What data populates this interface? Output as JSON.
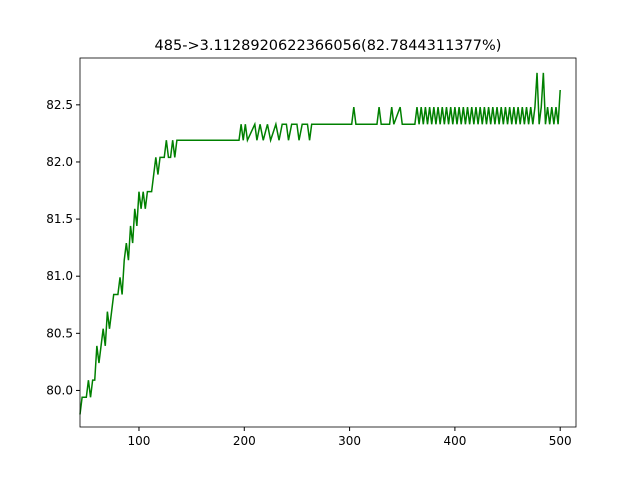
{
  "chart_data": {
    "type": "line",
    "title": "485->3.1128920622366056(82.7844311377%)",
    "x": [
      44,
      46,
      50,
      52,
      54,
      56,
      58,
      60,
      62,
      64,
      66,
      68,
      70,
      72,
      74,
      76,
      80,
      82,
      84,
      86,
      88,
      90,
      92,
      94,
      96,
      98,
      100,
      102,
      104,
      106,
      108,
      112,
      114,
      116,
      118,
      120,
      124,
      126,
      128,
      130,
      132,
      134,
      136,
      140,
      195,
      197,
      199,
      201,
      203,
      210,
      212,
      215,
      218,
      222,
      225,
      230,
      233,
      236,
      240,
      242,
      245,
      250,
      252,
      255,
      260,
      262,
      264,
      302,
      304,
      306,
      326,
      328,
      330,
      338,
      340,
      342,
      348,
      350,
      362,
      364,
      366,
      368,
      370,
      372,
      374,
      376,
      378,
      380,
      382,
      384,
      386,
      388,
      390,
      392,
      394,
      396,
      398,
      400,
      402,
      404,
      406,
      408,
      410,
      412,
      414,
      416,
      418,
      420,
      422,
      424,
      426,
      428,
      430,
      432,
      434,
      436,
      438,
      440,
      442,
      444,
      446,
      448,
      450,
      452,
      454,
      456,
      458,
      460,
      462,
      464,
      466,
      468,
      470,
      472,
      474,
      476,
      478,
      480,
      482,
      484,
      486,
      488,
      490,
      492,
      494,
      496,
      498,
      500
    ],
    "series": [
      {
        "color": "#008000",
        "values": [
          79.79,
          79.94,
          79.94,
          80.09,
          79.94,
          80.09,
          80.09,
          80.39,
          80.24,
          80.39,
          80.54,
          80.39,
          80.69,
          80.54,
          80.69,
          80.84,
          80.84,
          80.99,
          80.84,
          81.14,
          81.29,
          81.14,
          81.44,
          81.29,
          81.59,
          81.44,
          81.74,
          81.59,
          81.74,
          81.59,
          81.74,
          81.74,
          81.89,
          82.04,
          81.89,
          82.04,
          82.04,
          82.19,
          82.04,
          82.04,
          82.19,
          82.04,
          82.19,
          82.19,
          82.19,
          82.33,
          82.19,
          82.33,
          82.19,
          82.33,
          82.19,
          82.33,
          82.19,
          82.33,
          82.19,
          82.33,
          82.19,
          82.33,
          82.33,
          82.19,
          82.33,
          82.33,
          82.19,
          82.33,
          82.33,
          82.19,
          82.33,
          82.33,
          82.48,
          82.33,
          82.33,
          82.48,
          82.33,
          82.33,
          82.48,
          82.33,
          82.48,
          82.33,
          82.33,
          82.48,
          82.33,
          82.48,
          82.33,
          82.48,
          82.33,
          82.48,
          82.33,
          82.48,
          82.33,
          82.48,
          82.33,
          82.48,
          82.33,
          82.48,
          82.33,
          82.48,
          82.33,
          82.48,
          82.33,
          82.48,
          82.33,
          82.48,
          82.33,
          82.48,
          82.33,
          82.48,
          82.33,
          82.48,
          82.33,
          82.48,
          82.33,
          82.48,
          82.33,
          82.48,
          82.33,
          82.48,
          82.33,
          82.48,
          82.33,
          82.48,
          82.33,
          82.48,
          82.33,
          82.48,
          82.33,
          82.48,
          82.33,
          82.48,
          82.33,
          82.48,
          82.33,
          82.48,
          82.33,
          82.48,
          82.33,
          82.48,
          82.78,
          82.33,
          82.48,
          82.78,
          82.33,
          82.48,
          82.33,
          82.48,
          82.33,
          82.48,
          82.33,
          82.63
        ]
      }
    ],
    "xlim": [
      44,
      515
    ],
    "ylim": [
      79.68,
      82.91
    ],
    "xticks": [
      100,
      200,
      300,
      400,
      500
    ],
    "yticks": [
      {
        "value": 80,
        "label": "80.0"
      },
      {
        "value": 80.5,
        "label": "80.5"
      },
      {
        "value": 81,
        "label": "81.0"
      },
      {
        "value": 81.5,
        "label": "81.5"
      },
      {
        "value": 82,
        "label": "82.0"
      },
      {
        "value": 82.5,
        "label": "82.5"
      }
    ]
  }
}
